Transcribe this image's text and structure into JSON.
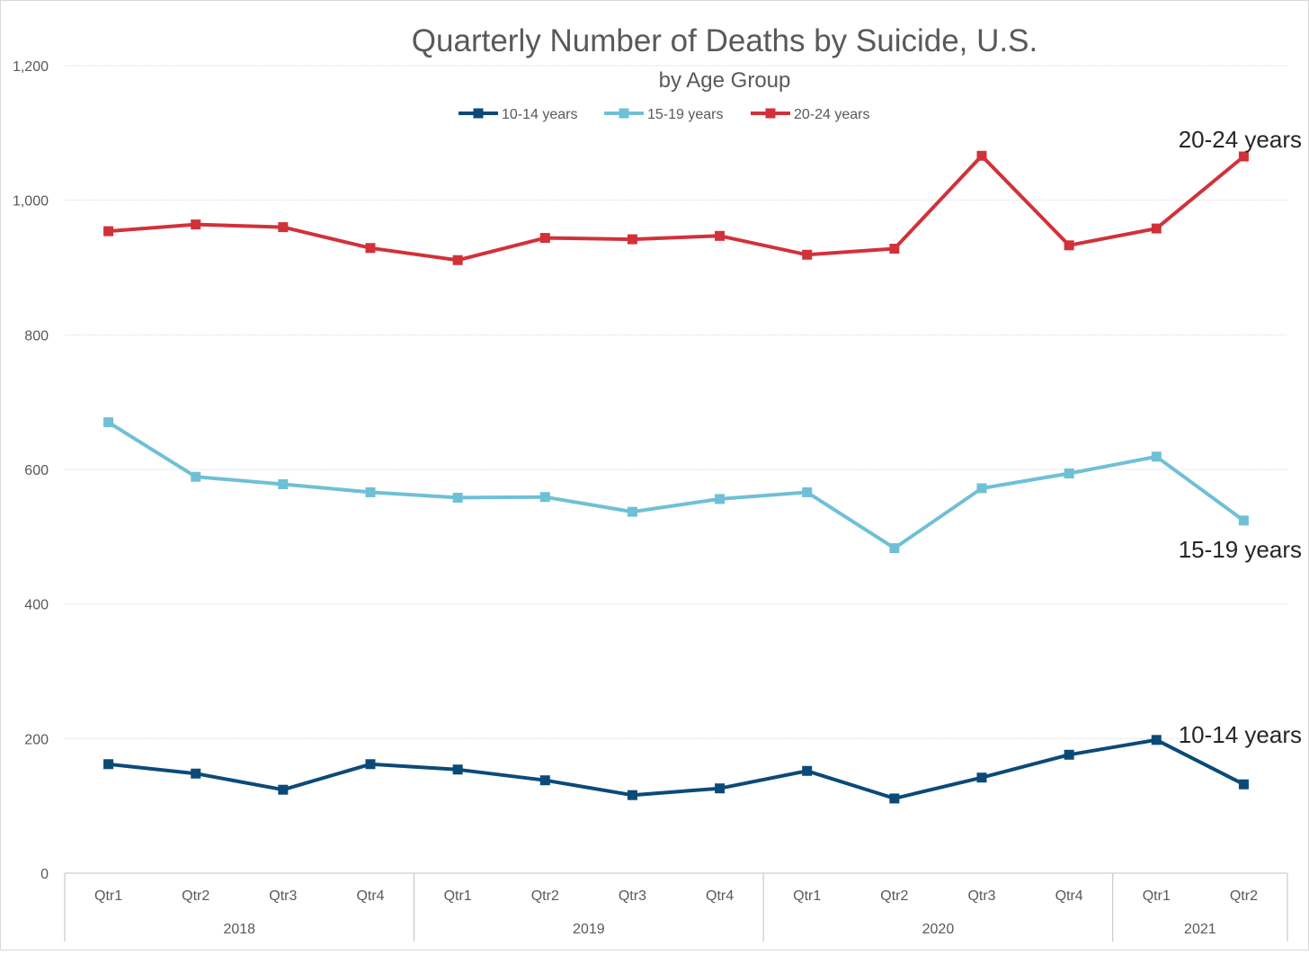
{
  "chart_data": {
    "type": "line",
    "title": "Quarterly Number of Deaths by Suicide, U.S.",
    "subtitle": "by Age Group",
    "xlabel": "",
    "ylabel": "",
    "ylim": [
      0,
      1200
    ],
    "y_ticks": [
      "0",
      "200",
      "400",
      "600",
      "800",
      "1,000",
      "1,200"
    ],
    "grid": true,
    "legend_position": "top",
    "categories": [
      "Qtr1",
      "Qtr2",
      "Qtr3",
      "Qtr4",
      "Qtr1",
      "Qtr2",
      "Qtr3",
      "Qtr4",
      "Qtr1",
      "Qtr2",
      "Qtr3",
      "Qtr4",
      "Qtr1",
      "Qtr2"
    ],
    "category_groups": [
      {
        "label": "2018",
        "count": 4
      },
      {
        "label": "2019",
        "count": 4
      },
      {
        "label": "2020",
        "count": 4
      },
      {
        "label": "2021",
        "count": 2
      }
    ],
    "series": [
      {
        "name": "10-14 years",
        "color": "#0b4a78",
        "end_label": "10-14 years",
        "values": [
          162,
          148,
          124,
          162,
          154,
          138,
          116,
          126,
          152,
          111,
          142,
          176,
          198,
          132
        ]
      },
      {
        "name": "15-19 years",
        "color": "#6ec0d6",
        "end_label": "15-19 years",
        "values": [
          670,
          589,
          578,
          566,
          558,
          559,
          537,
          556,
          566,
          483,
          572,
          594,
          619,
          524
        ]
      },
      {
        "name": "20-24 years",
        "color": "#d2313a",
        "end_label": "20-24 years",
        "values": [
          954,
          964,
          960,
          929,
          911,
          944,
          942,
          947,
          919,
          928,
          1066,
          933,
          958,
          1065
        ]
      }
    ]
  }
}
